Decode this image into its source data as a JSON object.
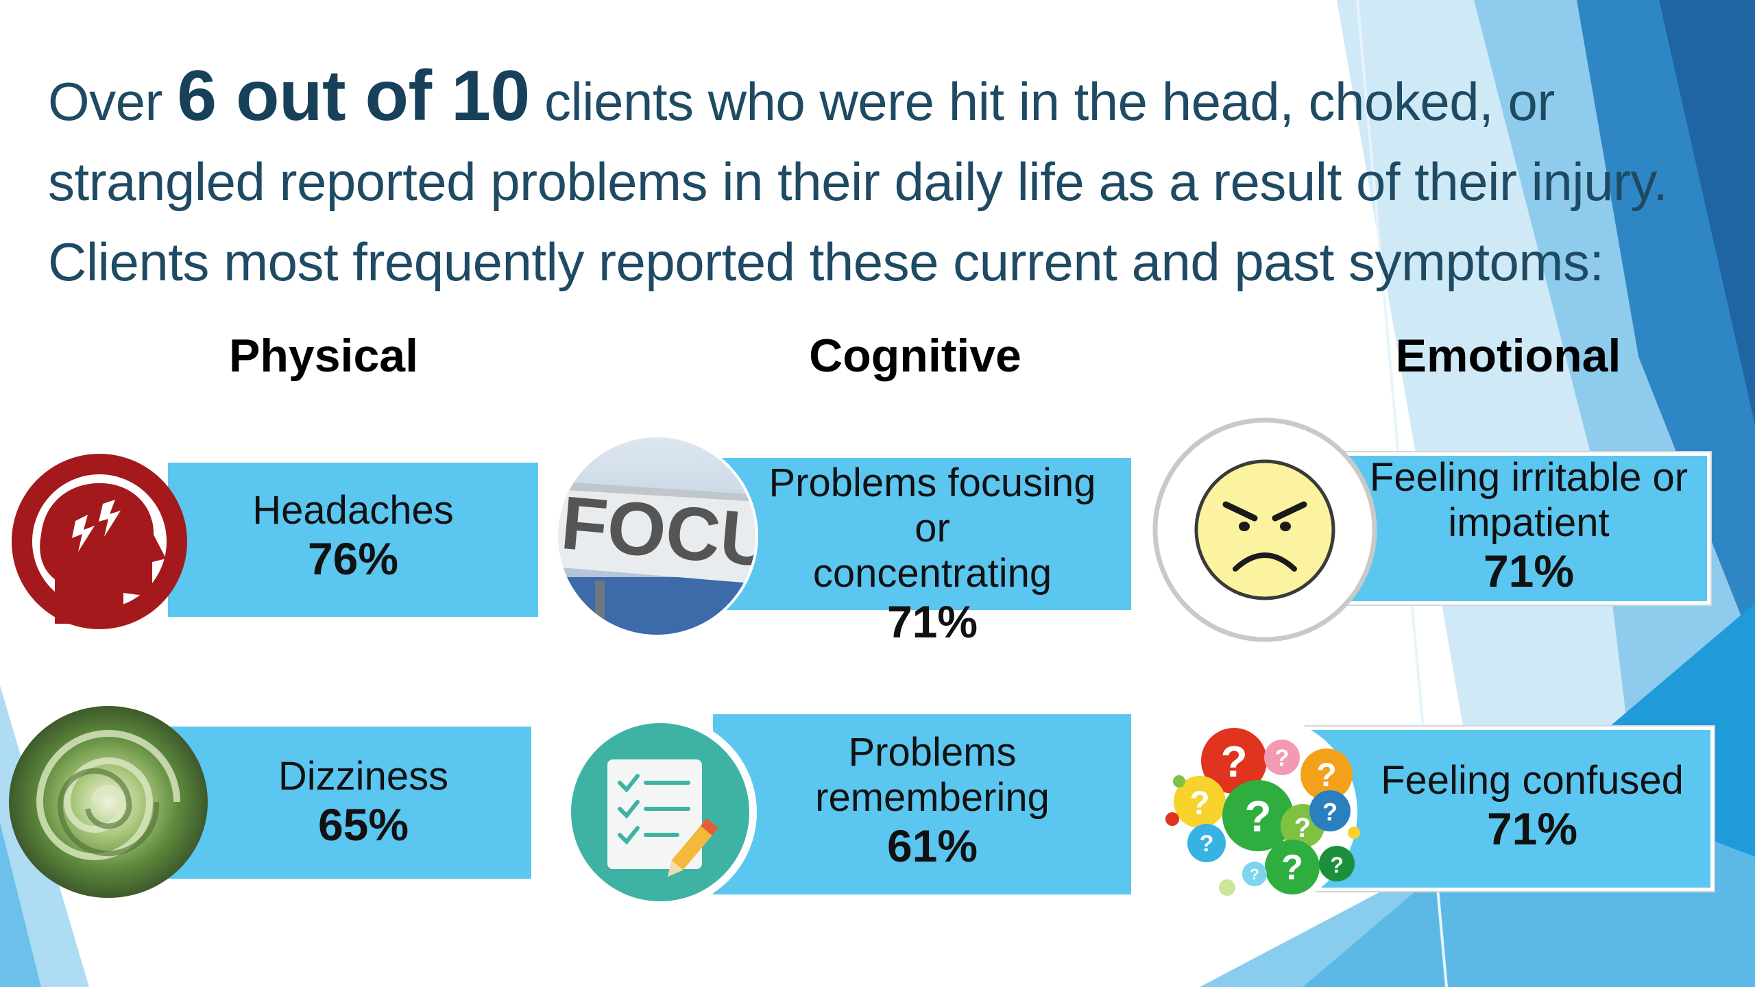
{
  "headline": {
    "intro": "Over",
    "emphasis": "6 out of 10",
    "line1_rest": "clients who were hit in the head, choked, or",
    "line2": "strangled reported problems in their daily life as a result of their injury.",
    "line3": "Clients most frequently reported these current and past symptoms:"
  },
  "categories": {
    "physical": "Physical",
    "cognitive": "Cognitive",
    "emotional": "Emotional"
  },
  "symptoms": {
    "headaches": {
      "label": "Headaches",
      "percent": "76%",
      "icon": "headache-head-icon"
    },
    "dizziness": {
      "label": "Dizziness",
      "percent": "65%",
      "icon": "dizzy-swirl-icon"
    },
    "focusing": {
      "label_line1": "Problems focusing or",
      "label_line2": "concentrating",
      "percent": "71%",
      "icon": "focus-sign-icon",
      "sign_text": "FOCU"
    },
    "remembering": {
      "label_line1": "Problems",
      "label_line2": "remembering",
      "percent": "61%",
      "icon": "checklist-icon"
    },
    "irritable": {
      "label_line1": "Feeling irritable or",
      "label_line2": "impatient",
      "percent": "71%",
      "icon": "angry-face-icon"
    },
    "confused": {
      "label": "Feeling confused",
      "percent": "71%",
      "icon": "question-marks-icon"
    }
  },
  "colors": {
    "card": "#5bc6f0",
    "headline": "#1f4a63",
    "headache_red": "#a3191c",
    "checklist_teal": "#3fb3a3",
    "accent_blue": "#2a7fbf"
  }
}
